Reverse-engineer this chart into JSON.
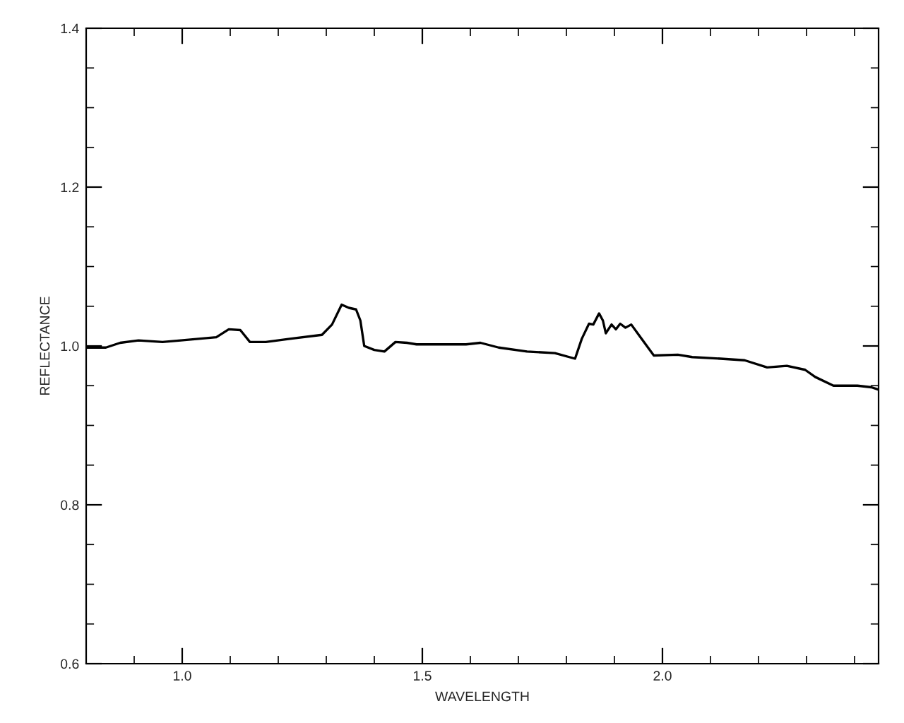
{
  "chart_data": {
    "type": "line",
    "xlabel": "WAVELENGTH",
    "ylabel": "REFLECTANCE",
    "xlim": [
      0.8,
      2.45
    ],
    "ylim": [
      0.6,
      1.4
    ],
    "xticks": [
      {
        "value": 0.9,
        "label": null
      },
      {
        "value": 1.0,
        "label": "1.0"
      },
      {
        "value": 1.1,
        "label": null
      },
      {
        "value": 1.2,
        "label": null
      },
      {
        "value": 1.3,
        "label": null
      },
      {
        "value": 1.4,
        "label": null
      },
      {
        "value": 1.5,
        "label": "1.5"
      },
      {
        "value": 1.6,
        "label": null
      },
      {
        "value": 1.7,
        "label": null
      },
      {
        "value": 1.8,
        "label": null
      },
      {
        "value": 1.9,
        "label": null
      },
      {
        "value": 2.0,
        "label": "2.0"
      },
      {
        "value": 2.1,
        "label": null
      },
      {
        "value": 2.2,
        "label": null
      },
      {
        "value": 2.3,
        "label": null
      },
      {
        "value": 2.4,
        "label": null
      }
    ],
    "yticks": [
      {
        "value": 0.6,
        "label": "0.6"
      },
      {
        "value": 0.65,
        "label": null
      },
      {
        "value": 0.7,
        "label": null
      },
      {
        "value": 0.75,
        "label": null
      },
      {
        "value": 0.8,
        "label": "0.8"
      },
      {
        "value": 0.85,
        "label": null
      },
      {
        "value": 0.9,
        "label": null
      },
      {
        "value": 0.95,
        "label": null
      },
      {
        "value": 1.0,
        "label": "1.0"
      },
      {
        "value": 1.05,
        "label": null
      },
      {
        "value": 1.1,
        "label": null
      },
      {
        "value": 1.15,
        "label": null
      },
      {
        "value": 1.2,
        "label": "1.2"
      },
      {
        "value": 1.25,
        "label": null
      },
      {
        "value": 1.3,
        "label": null
      },
      {
        "value": 1.35,
        "label": null
      },
      {
        "value": 1.4,
        "label": "1.4"
      }
    ],
    "grid": false,
    "marker": "none",
    "line_style": "solid",
    "series": [
      {
        "color": "#000000",
        "x": [
          0.8,
          0.841,
          0.871,
          0.909,
          0.959,
          0.997,
          1.071,
          1.097,
          1.121,
          1.141,
          1.174,
          1.224,
          1.291,
          1.312,
          1.332,
          1.347,
          1.362,
          1.371,
          1.379,
          1.4,
          1.421,
          1.444,
          1.468,
          1.488,
          1.591,
          1.621,
          1.659,
          1.718,
          1.776,
          1.818,
          1.832,
          1.847,
          1.856,
          1.868,
          1.876,
          1.882,
          1.894,
          1.903,
          1.912,
          1.923,
          1.935,
          1.953,
          1.982,
          2.032,
          2.062,
          2.121,
          2.171,
          2.218,
          2.259,
          2.297,
          2.318,
          2.356,
          2.406,
          2.435,
          2.45
        ],
        "values": [
          0.998,
          0.998,
          1.004,
          1.007,
          1.005,
          1.007,
          1.011,
          1.021,
          1.02,
          1.005,
          1.005,
          1.009,
          1.014,
          1.027,
          1.052,
          1.048,
          1.046,
          1.032,
          1.0,
          0.995,
          0.993,
          1.005,
          1.004,
          1.002,
          1.002,
          1.004,
          0.998,
          0.993,
          0.991,
          0.984,
          1.009,
          1.028,
          1.027,
          1.041,
          1.032,
          1.016,
          1.027,
          1.021,
          1.028,
          1.023,
          1.027,
          1.012,
          0.988,
          0.989,
          0.986,
          0.984,
          0.982,
          0.973,
          0.975,
          0.97,
          0.961,
          0.95,
          0.95,
          0.948,
          0.945
        ]
      }
    ]
  }
}
